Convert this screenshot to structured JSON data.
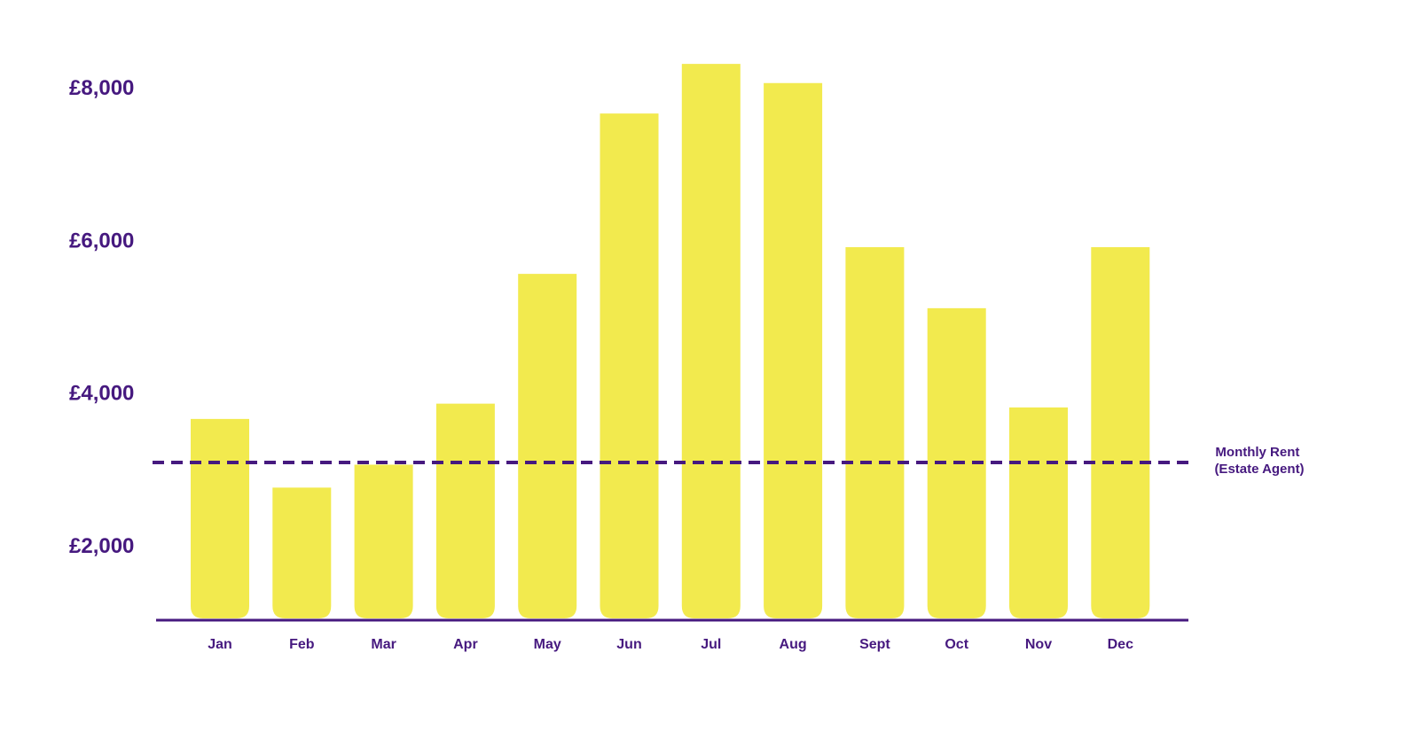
{
  "chart_data": {
    "type": "bar",
    "categories": [
      "Jan",
      "Feb",
      "Mar",
      "Apr",
      "May",
      "Jun",
      "Jul",
      "Aug",
      "Sept",
      "Oct",
      "Nov",
      "Dec"
    ],
    "values": [
      3650,
      2750,
      3050,
      3850,
      5550,
      7650,
      8300,
      8050,
      5900,
      5100,
      3800,
      5900
    ],
    "title": "",
    "xlabel": "",
    "ylabel": "",
    "ylim": [
      1000,
      8300
    ],
    "yticks": [
      2000,
      4000,
      6000,
      8000
    ],
    "ytick_labels": [
      "£2,000",
      "£4,000",
      "£6,000",
      "£8,000"
    ],
    "grid": false,
    "reference_line": {
      "value": 3080,
      "label_lines": [
        "Monthly Rent",
        "(Estate Agent)"
      ],
      "style": "dashed"
    },
    "colors": {
      "bar": "#f2ea4e",
      "text": "#46197f",
      "axis": "#46197f",
      "reference": "#46197f"
    }
  }
}
